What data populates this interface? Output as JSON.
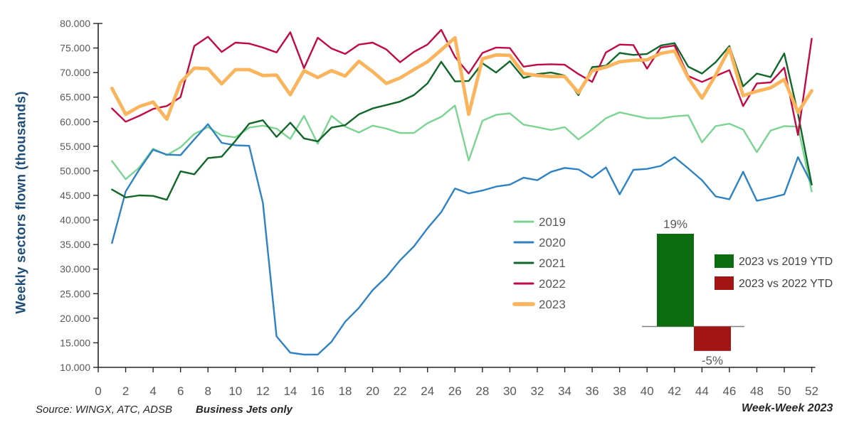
{
  "page": {
    "background": "#ffffff"
  },
  "y_axis": {
    "title": "Weekly sectors flown (thousands)",
    "title_color": "#1F4E79",
    "tick_labels": [
      "80.000",
      "75.000",
      "70.000",
      "65.000",
      "60.000",
      "55.000",
      "50.000",
      "45.000",
      "40.000",
      "35.000",
      "30.000",
      "25.000",
      "20.000",
      "15.000",
      "10.000"
    ],
    "tick_values": [
      80,
      75,
      70,
      65,
      60,
      55,
      50,
      45,
      40,
      35,
      30,
      25,
      20,
      15,
      10
    ],
    "label_color": "#595959"
  },
  "x_axis": {
    "tick_values": [
      0,
      2,
      4,
      6,
      8,
      10,
      12,
      14,
      16,
      18,
      20,
      22,
      24,
      26,
      28,
      30,
      32,
      34,
      36,
      38,
      40,
      42,
      44,
      46,
      48,
      50,
      52
    ],
    "label_color": "#595959"
  },
  "footer": {
    "source_note": "Source: WINGX, ATC, ADSB",
    "scope_note": "Business Jets only",
    "axis_note": "Week-Week 2023"
  },
  "chart_data": [
    {
      "type": "line",
      "title": "",
      "xlabel": "Week-Week 2023",
      "ylabel": "Weekly sectors flown (thousands)",
      "xlim": [
        0,
        52
      ],
      "ylim": [
        10,
        80
      ],
      "y_tick_step": 5,
      "grid": false,
      "legend_position": "center-right",
      "x": [
        1,
        2,
        3,
        4,
        5,
        6,
        7,
        8,
        9,
        10,
        11,
        12,
        13,
        14,
        15,
        16,
        17,
        18,
        19,
        20,
        21,
        22,
        23,
        24,
        25,
        26,
        27,
        28,
        29,
        30,
        31,
        32,
        33,
        34,
        35,
        36,
        37,
        38,
        39,
        40,
        41,
        42,
        43,
        44,
        45,
        46,
        47,
        48,
        49,
        50,
        51,
        52
      ],
      "series": [
        {
          "name": "2019",
          "color": "#7CD492",
          "width": 2.4,
          "values": [
            52.0,
            48.3,
            50.7,
            54.5,
            53.2,
            54.8,
            57.5,
            58.9,
            57.2,
            56.8,
            58.8,
            59.2,
            58.6,
            56.5,
            61.2,
            55.5,
            61.2,
            59.0,
            57.8,
            59.2,
            58.6,
            57.7,
            57.7,
            59.7,
            61.0,
            63.3,
            52.1,
            60.2,
            61.4,
            61.7,
            59.4,
            58.9,
            58.3,
            58.9,
            56.4,
            58.4,
            60.7,
            61.9,
            61.3,
            60.7,
            60.7,
            61.1,
            61.3,
            55.8,
            59.1,
            59.6,
            58.4,
            53.8,
            58.2,
            59.1,
            59.0,
            45.8
          ]
        },
        {
          "name": "2020",
          "color": "#2E82C4",
          "width": 2.4,
          "values": [
            35.3,
            45.8,
            50.3,
            54.3,
            53.3,
            53.2,
            56.4,
            59.5,
            55.7,
            55.2,
            55.1,
            43.5,
            16.3,
            13.0,
            12.6,
            12.6,
            15.2,
            19.3,
            22.1,
            25.7,
            28.4,
            31.8,
            34.6,
            38.3,
            41.6,
            46.4,
            45.4,
            46.0,
            46.8,
            47.2,
            48.6,
            48.1,
            49.8,
            50.6,
            50.3,
            48.6,
            50.7,
            45.2,
            50.2,
            50.4,
            51.0,
            52.8,
            50.5,
            48.1,
            44.8,
            44.2,
            49.8,
            43.9,
            44.5,
            45.2,
            52.8,
            47.3
          ]
        },
        {
          "name": "2021",
          "color": "#11672A",
          "width": 2.4,
          "values": [
            46.2,
            44.6,
            45.0,
            44.9,
            44.1,
            49.9,
            49.3,
            52.6,
            52.9,
            56.1,
            59.6,
            60.3,
            56.9,
            59.8,
            56.6,
            56.0,
            58.8,
            59.3,
            61.5,
            62.7,
            63.4,
            64.1,
            65.4,
            67.8,
            72.2,
            68.2,
            68.3,
            71.9,
            70.0,
            72.3,
            68.9,
            69.7,
            70.0,
            69.4,
            65.4,
            71.1,
            71.4,
            74.0,
            73.6,
            73.8,
            75.5,
            76.0,
            71.2,
            69.8,
            72.1,
            75.4,
            67.2,
            69.8,
            69.1,
            73.9,
            61.6,
            47.2
          ]
        },
        {
          "name": "2022",
          "color": "#C00A45",
          "width": 2.4,
          "values": [
            62.7,
            60.0,
            61.2,
            62.6,
            63.2,
            65.0,
            75.4,
            77.3,
            74.2,
            76.1,
            75.9,
            75.1,
            74.1,
            78.2,
            70.9,
            77.1,
            74.9,
            73.8,
            75.7,
            76.1,
            74.7,
            72.1,
            74.2,
            75.7,
            78.7,
            73.2,
            69.8,
            74.0,
            75.1,
            75.0,
            71.2,
            71.6,
            71.7,
            71.6,
            69.7,
            68.1,
            74.1,
            75.7,
            75.6,
            70.8,
            75.1,
            75.5,
            69.3,
            68.1,
            69.3,
            70.5,
            63.2,
            67.8,
            68.0,
            71.0,
            57.3,
            76.9
          ]
        },
        {
          "name": "2023",
          "color": "#FAB45C",
          "width": 4.8,
          "values": [
            66.8,
            61.5,
            63.1,
            64.0,
            60.5,
            68.0,
            70.9,
            70.8,
            67.7,
            70.6,
            70.6,
            69.4,
            69.5,
            65.5,
            70.4,
            69.0,
            70.4,
            69.3,
            72.3,
            70.2,
            67.8,
            68.9,
            70.6,
            72.2,
            74.6,
            77.1,
            61.5,
            72.8,
            73.6,
            73.5,
            69.8,
            69.4,
            69.2,
            69.2,
            65.9,
            70.4,
            71.1,
            72.2,
            72.5,
            72.6,
            73.9,
            74.4,
            68.9,
            64.8,
            69.5,
            74.9,
            65.3,
            66.2,
            66.9,
            68.6,
            61.9,
            66.3
          ]
        }
      ]
    },
    {
      "type": "bar",
      "title": "",
      "categories": [
        "2023 vs 2019 YTD",
        "2023 vs 2022 YTD"
      ],
      "values": [
        19,
        -5
      ],
      "bars": [
        {
          "label": "19%",
          "value": 19,
          "color": "#0C6C10",
          "legend": "2023 vs 2019 YTD"
        },
        {
          "label": "-5%",
          "value": -5,
          "color": "#A31414",
          "legend": "2023 vs 2022 YTD"
        }
      ],
      "axis_color": "#808080",
      "label_color": "#595959",
      "legend_text_color": "#404040"
    }
  ]
}
